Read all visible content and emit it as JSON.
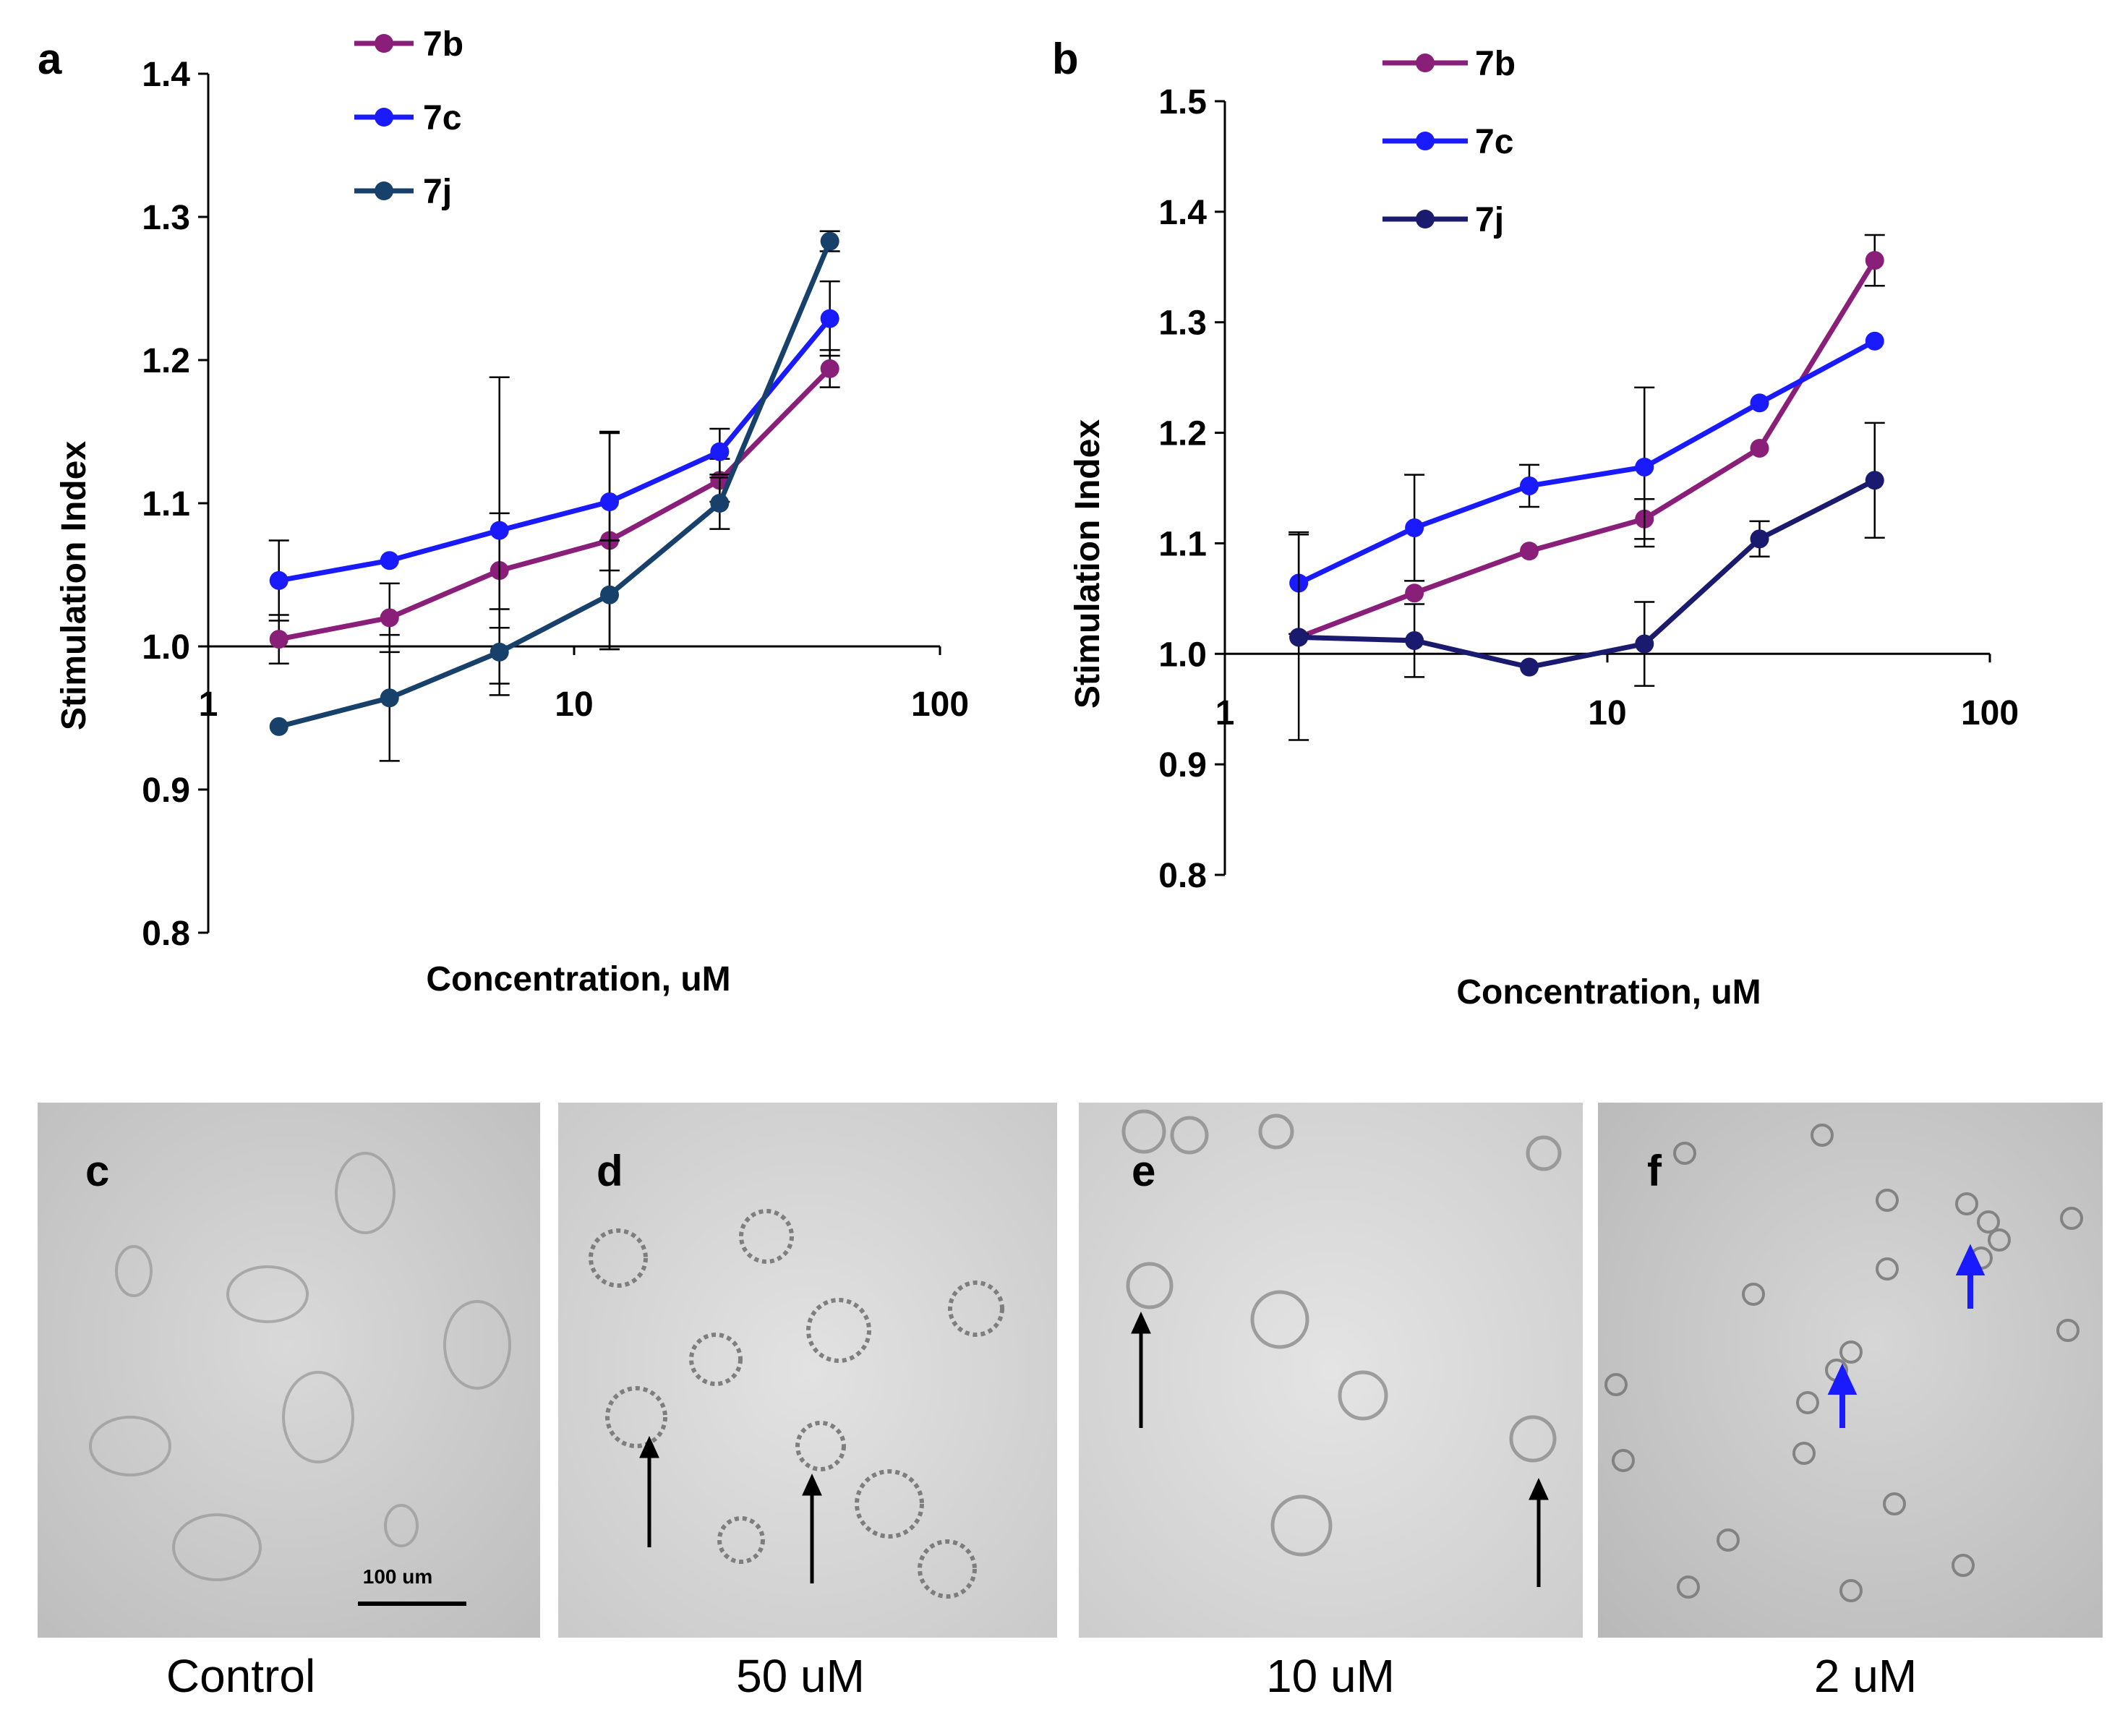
{
  "figure": {
    "panels": [
      {
        "letter": "a"
      },
      {
        "letter": "b"
      },
      {
        "letter": "c",
        "caption": "Control",
        "scale_bar_label": "100 um"
      },
      {
        "letter": "d",
        "caption": "50 uM"
      },
      {
        "letter": "e",
        "caption": "10 uM"
      },
      {
        "letter": "f",
        "caption": "2 uM"
      }
    ]
  },
  "chart_data": [
    {
      "panel": "a",
      "type": "line",
      "xscale": "log",
      "xlim": [
        1,
        100
      ],
      "ylim": [
        0.8,
        1.4
      ],
      "x_ticks": [
        1,
        10,
        100
      ],
      "y_ticks": [
        0.8,
        0.9,
        1.0,
        1.1,
        1.2,
        1.3,
        1.4
      ],
      "x_axis_crosses_y": 1.0,
      "xlabel": "Concentration, uM",
      "ylabel": "Stimulation Index",
      "legend_position": "top",
      "x": [
        1.56,
        3.13,
        6.25,
        12.5,
        25,
        50
      ],
      "series": [
        {
          "name": "7b",
          "color": "#8a1f7a",
          "values": [
            1.005,
            1.02,
            1.053,
            1.074,
            1.116,
            1.194
          ],
          "errors": [
            0.017,
            0.024,
            0.04,
            0.076,
            0.015,
            0.013
          ]
        },
        {
          "name": "7c",
          "color": "#1a1aff",
          "values": [
            1.046,
            1.06,
            1.081,
            1.101,
            1.136,
            1.229
          ],
          "errors": [
            0.028,
            0.0,
            0.107,
            0.048,
            0.016,
            0.026
          ]
        },
        {
          "name": "7j",
          "color": "#17406b",
          "values": [
            0.944,
            0.964,
            0.996,
            1.036,
            1.1,
            1.283
          ],
          "errors": [
            0.0,
            0.044,
            0.03,
            0.038,
            0.018,
            0.007
          ]
        }
      ]
    },
    {
      "panel": "b",
      "type": "line",
      "xscale": "log",
      "xlim": [
        1,
        100
      ],
      "ylim": [
        0.8,
        1.5
      ],
      "x_ticks": [
        1,
        10,
        100
      ],
      "y_ticks": [
        0.8,
        0.9,
        1.0,
        1.1,
        1.2,
        1.3,
        1.4,
        1.5
      ],
      "x_axis_crosses_y": 1.0,
      "xlabel": "Concentration, uM",
      "ylabel": "Stimulation Index",
      "legend_position": "top",
      "x": [
        1.56,
        3.13,
        6.25,
        12.5,
        25,
        50
      ],
      "series": [
        {
          "name": "7b",
          "color": "#8a1f7a",
          "values": [
            1.015,
            1.055,
            1.093,
            1.122,
            1.186,
            1.356
          ],
          "errors": [
            0.0,
            0.0,
            0.0,
            0.018,
            0.0,
            0.023
          ]
        },
        {
          "name": "7c",
          "color": "#1a1aff",
          "values": [
            1.064,
            1.114,
            1.152,
            1.169,
            1.227,
            1.283
          ],
          "errors": [
            0.046,
            0.048,
            0.019,
            0.072,
            0.0,
            0.0
          ]
        },
        {
          "name": "7j",
          "color": "#1a1a6e",
          "values": [
            1.015,
            1.012,
            0.988,
            1.009,
            1.104,
            1.157
          ],
          "errors": [
            0.093,
            0.033,
            0.0,
            0.038,
            0.016,
            0.052
          ]
        }
      ]
    }
  ]
}
